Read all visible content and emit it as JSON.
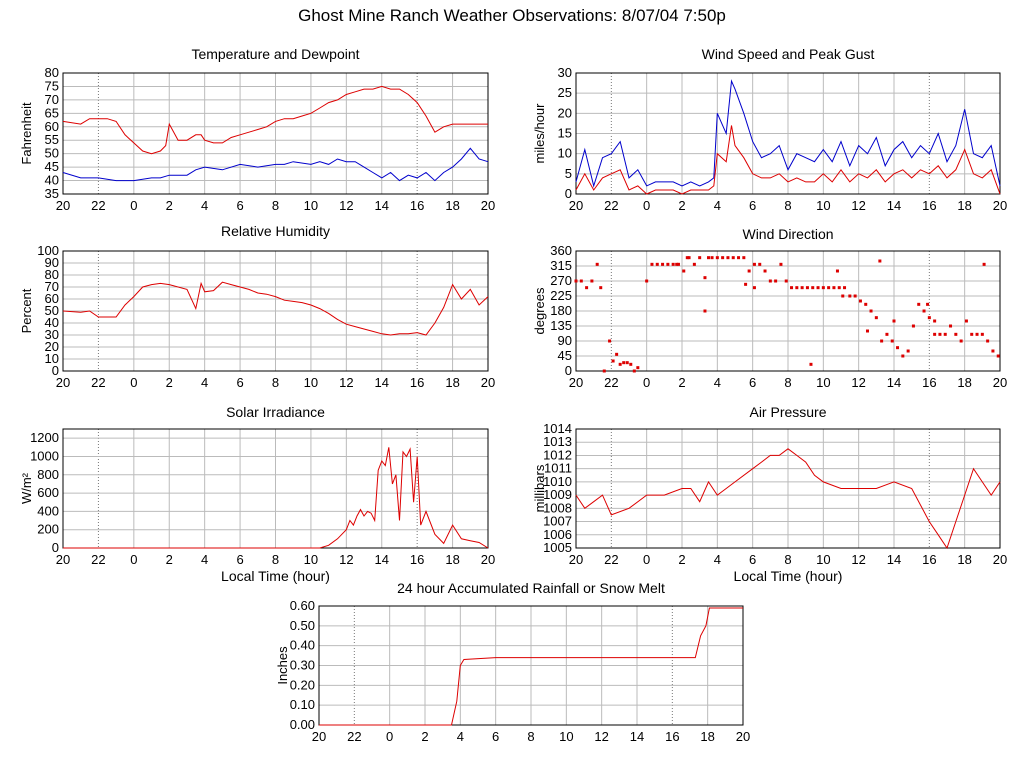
{
  "page": {
    "title": "Ghost Mine Ranch Weather Observations: 8/07/04 7:50p"
  },
  "chart_data": [
    {
      "id": "temp",
      "type": "line",
      "title": "Temperature and Dewpoint",
      "xlabel": "",
      "ylabel": "Fahrenheit",
      "xlim": [
        0,
        24
      ],
      "ylim": [
        35,
        80
      ],
      "x_ticks": [
        "20",
        "22",
        "0",
        "2",
        "4",
        "6",
        "8",
        "10",
        "12",
        "14",
        "16",
        "18",
        "20"
      ],
      "y_ticks": [
        35,
        40,
        45,
        50,
        55,
        60,
        65,
        70,
        75,
        80
      ],
      "grid": true,
      "series": [
        {
          "color": "#dd0000",
          "x": [
            0,
            1,
            1.5,
            2,
            2.5,
            3,
            3.5,
            4,
            4.5,
            5,
            5.5,
            5.8,
            6,
            6.5,
            7,
            7.5,
            7.8,
            8,
            8.5,
            9,
            9.5,
            10,
            10.5,
            11,
            11.5,
            12,
            12.5,
            13,
            13.5,
            14,
            14.5,
            15,
            15.5,
            16,
            16.5,
            17,
            17.5,
            18,
            18.5,
            19,
            19.5,
            20,
            20.5,
            21,
            21.5,
            22,
            22.5,
            23,
            23.5,
            24
          ],
          "values": [
            62,
            61,
            63,
            63,
            63,
            62,
            57,
            54,
            51,
            50,
            51,
            53,
            61,
            55,
            55,
            57,
            57,
            55,
            54,
            54,
            56,
            57,
            58,
            59,
            60,
            62,
            63,
            63,
            64,
            65,
            67,
            69,
            70,
            72,
            73,
            74,
            74,
            75,
            74,
            74,
            72,
            69,
            64,
            58,
            60,
            61,
            61,
            61,
            61,
            61
          ]
        },
        {
          "color": "#0000cc",
          "x": [
            0,
            1,
            2,
            3,
            4,
            5,
            5.5,
            6,
            6.5,
            7,
            7.5,
            8,
            9,
            10,
            11,
            12,
            12.5,
            13,
            14,
            14.5,
            15,
            15.5,
            16,
            16.5,
            17,
            17.5,
            18,
            18.5,
            19,
            19.5,
            20,
            20.5,
            21,
            21.5,
            22,
            22.5,
            23,
            23.5,
            24
          ],
          "values": [
            43,
            41,
            41,
            40,
            40,
            41,
            41,
            42,
            42,
            42,
            44,
            45,
            44,
            46,
            45,
            46,
            46,
            47,
            46,
            47,
            46,
            48,
            47,
            47,
            45,
            43,
            41,
            43,
            40,
            42,
            41,
            43,
            40,
            43,
            45,
            48,
            52,
            48,
            47
          ]
        }
      ]
    },
    {
      "id": "wind",
      "type": "line",
      "title": "Wind Speed and Peak Gust",
      "xlabel": "",
      "ylabel": "miles/hour",
      "xlim": [
        0,
        24
      ],
      "ylim": [
        0,
        30
      ],
      "x_ticks": [
        "20",
        "22",
        "0",
        "2",
        "4",
        "6",
        "8",
        "10",
        "12",
        "14",
        "16",
        "18",
        "20"
      ],
      "y_ticks": [
        0,
        5,
        10,
        15,
        20,
        25,
        30
      ],
      "grid": true,
      "series": [
        {
          "color": "#0000cc",
          "x": [
            0,
            0.5,
            1,
            1.5,
            2,
            2.5,
            3,
            3.5,
            4,
            4.5,
            5,
            5.5,
            6,
            6.5,
            7,
            7.5,
            7.8,
            8,
            8.5,
            8.8,
            9,
            9.5,
            10,
            10.5,
            11,
            11.5,
            12,
            12.5,
            13,
            13.5,
            14,
            14.5,
            15,
            15.5,
            16,
            16.5,
            17,
            17.5,
            18,
            18.5,
            19,
            19.5,
            20,
            20.5,
            21,
            21.5,
            22,
            22.5,
            23,
            23.5,
            24
          ],
          "values": [
            3,
            11,
            2,
            9,
            10,
            13,
            4,
            6,
            2,
            3,
            3,
            3,
            2,
            3,
            2,
            3,
            4,
            20,
            15,
            28,
            26,
            20,
            13,
            9,
            10,
            12,
            6,
            10,
            9,
            8,
            11,
            8,
            13,
            7,
            12,
            10,
            14,
            7,
            11,
            13,
            9,
            12,
            10,
            15,
            8,
            12,
            21,
            10,
            9,
            12,
            2
          ]
        },
        {
          "color": "#dd0000",
          "x": [
            0,
            0.5,
            1,
            1.5,
            2,
            2.5,
            3,
            3.5,
            4,
            4.5,
            5,
            5.5,
            6,
            6.5,
            7,
            7.5,
            7.8,
            8,
            8.5,
            8.8,
            9,
            9.5,
            10,
            10.5,
            11,
            11.5,
            12,
            12.5,
            13,
            13.5,
            14,
            14.5,
            15,
            15.5,
            16,
            16.5,
            17,
            17.5,
            18,
            18.5,
            19,
            19.5,
            20,
            20.5,
            21,
            21.5,
            22,
            22.5,
            23,
            23.5,
            24
          ],
          "values": [
            1,
            5,
            1,
            4,
            5,
            6,
            1,
            2,
            0,
            1,
            1,
            1,
            0,
            1,
            1,
            1,
            2,
            10,
            8,
            17,
            12,
            9,
            5,
            4,
            4,
            5,
            3,
            4,
            3,
            3,
            5,
            3,
            6,
            3,
            5,
            4,
            6,
            3,
            5,
            6,
            4,
            6,
            5,
            7,
            4,
            6,
            11,
            5,
            4,
            6,
            0
          ]
        }
      ]
    },
    {
      "id": "rh",
      "type": "line",
      "title": "Relative Humidity",
      "xlabel": "",
      "ylabel": "Percent",
      "xlim": [
        0,
        24
      ],
      "ylim": [
        0,
        100
      ],
      "x_ticks": [
        "20",
        "22",
        "0",
        "2",
        "4",
        "6",
        "8",
        "10",
        "12",
        "14",
        "16",
        "18",
        "20"
      ],
      "y_ticks": [
        0,
        10,
        20,
        30,
        40,
        50,
        60,
        70,
        80,
        90,
        100
      ],
      "grid": true,
      "series": [
        {
          "color": "#dd0000",
          "x": [
            0,
            1,
            1.5,
            2,
            3,
            3.5,
            4,
            4.5,
            5,
            5.5,
            6,
            7,
            7.5,
            7.8,
            8,
            8.5,
            9,
            9.5,
            10,
            10.5,
            11,
            11.5,
            12,
            12.5,
            13,
            13.5,
            14,
            14.5,
            15,
            15.5,
            16,
            16.5,
            17,
            17.5,
            18,
            18.5,
            19,
            19.5,
            20,
            20.5,
            21,
            21.5,
            22,
            22.5,
            23,
            23.5,
            24
          ],
          "values": [
            50,
            49,
            50,
            45,
            45,
            55,
            62,
            70,
            72,
            73,
            72,
            68,
            52,
            73,
            66,
            67,
            74,
            72,
            70,
            68,
            65,
            64,
            62,
            59,
            58,
            57,
            55,
            52,
            48,
            43,
            39,
            37,
            35,
            33,
            31,
            30,
            31,
            31,
            32,
            30,
            40,
            53,
            72,
            60,
            68,
            55,
            62
          ]
        }
      ]
    },
    {
      "id": "winddir",
      "type": "scatter",
      "title": "Wind Direction",
      "xlabel": "",
      "ylabel": "degrees",
      "xlim": [
        0,
        24
      ],
      "ylim": [
        0,
        360
      ],
      "x_ticks": [
        "20",
        "22",
        "0",
        "2",
        "4",
        "6",
        "8",
        "10",
        "12",
        "14",
        "16",
        "18",
        "20"
      ],
      "y_ticks": [
        0,
        45,
        90,
        135,
        180,
        225,
        270,
        315,
        360
      ],
      "grid": true,
      "series": [
        {
          "color": "#dd0000",
          "x": [
            0,
            0.3,
            0.6,
            0.9,
            1.2,
            1.4,
            1.6,
            1.9,
            2.1,
            2.3,
            2.5,
            2.7,
            2.9,
            3.1,
            3.3,
            3.5,
            4,
            4.3,
            4.6,
            4.9,
            5.2,
            5.5,
            5.8,
            6.1,
            6.4,
            6.7,
            7,
            7.3,
            7.5,
            7.7,
            8,
            8.3,
            8.6,
            8.9,
            9.2,
            9.5,
            9.8,
            10.1,
            10.4,
            10.7,
            11,
            11.3,
            11.6,
            11.9,
            12.2,
            12.5,
            12.8,
            13.1,
            13.4,
            13.7,
            14,
            14.3,
            14.6,
            14.9,
            15.2,
            15.5,
            15.8,
            16.1,
            16.4,
            16.7,
            17,
            17.3,
            17.6,
            17.9,
            18.2,
            18.5,
            18.8,
            19.1,
            19.4,
            19.7,
            20,
            20.3,
            20.6,
            20.9,
            21.2,
            21.5,
            21.8,
            22.1,
            22.4,
            22.7,
            23,
            23.3,
            23.6,
            23.9,
            5.7,
            6.3,
            7.3,
            9.6,
            10.1,
            13.3,
            14.8,
            15.1,
            16.5,
            17.2,
            18.0,
            19.9,
            20.3,
            23.1
          ],
          "values": [
            270,
            270,
            250,
            270,
            320,
            250,
            0,
            90,
            30,
            50,
            20,
            25,
            25,
            20,
            0,
            10,
            270,
            320,
            320,
            320,
            320,
            320,
            320,
            300,
            340,
            320,
            340,
            280,
            340,
            340,
            340,
            340,
            340,
            340,
            340,
            340,
            300,
            320,
            320,
            300,
            270,
            270,
            320,
            270,
            250,
            250,
            250,
            250,
            250,
            250,
            250,
            250,
            250,
            250,
            250,
            225,
            225,
            210,
            200,
            180,
            160,
            90,
            110,
            90,
            70,
            45,
            60,
            135,
            200,
            180,
            160,
            110,
            110,
            110,
            135,
            110,
            90,
            150,
            110,
            110,
            110,
            90,
            60,
            45,
            320,
            340,
            180,
            260,
            250,
            20,
            300,
            225,
            120,
            330,
            150,
            200,
            150,
            320
          ]
        }
      ]
    },
    {
      "id": "solar",
      "type": "line",
      "title": "Solar Irradiance",
      "xlabel": "Local Time (hour)",
      "ylabel": "W/m²",
      "xlim": [
        0,
        24
      ],
      "ylim": [
        0,
        1300
      ],
      "x_ticks": [
        "20",
        "22",
        "0",
        "2",
        "4",
        "6",
        "8",
        "10",
        "12",
        "14",
        "16",
        "18",
        "20"
      ],
      "y_ticks": [
        0,
        200,
        400,
        600,
        800,
        1000,
        1200
      ],
      "grid": true,
      "series": [
        {
          "color": "#dd0000",
          "x": [
            0,
            2,
            4,
            6,
            8,
            10,
            11,
            11.5,
            12,
            12.5,
            13,
            13.5,
            14,
            14.5,
            15,
            15.5,
            16,
            16.2,
            16.4,
            16.6,
            16.8,
            17,
            17.2,
            17.4,
            17.6,
            17.8,
            18,
            18.2,
            18.4,
            18.6,
            18.8,
            19,
            19.2,
            19.4,
            19.6,
            19.8,
            20,
            20.2,
            20.5,
            21,
            21.5,
            22,
            22.5,
            23,
            23.5,
            24
          ],
          "values": [
            0,
            0,
            0,
            0,
            0,
            0,
            0,
            0,
            0,
            0,
            0,
            0,
            0,
            0,
            30,
            100,
            200,
            300,
            250,
            350,
            420,
            350,
            400,
            380,
            300,
            850,
            950,
            900,
            1100,
            700,
            800,
            300,
            1050,
            1000,
            1080,
            500,
            1000,
            250,
            400,
            150,
            50,
            250,
            100,
            80,
            60,
            0
          ]
        }
      ]
    },
    {
      "id": "pressure",
      "type": "line",
      "title": "Air Pressure",
      "xlabel": "Local Time (hour)",
      "ylabel": "millibars",
      "xlim": [
        0,
        24
      ],
      "ylim": [
        1005,
        1014
      ],
      "x_ticks": [
        "20",
        "22",
        "0",
        "2",
        "4",
        "6",
        "8",
        "10",
        "12",
        "14",
        "16",
        "18",
        "20"
      ],
      "y_ticks": [
        1005,
        1006,
        1007,
        1008,
        1009,
        1010,
        1011,
        1012,
        1013,
        1014
      ],
      "grid": true,
      "series": [
        {
          "color": "#dd0000",
          "x": [
            0,
            0.5,
            1,
            1.5,
            2,
            3,
            4,
            5,
            6,
            6.5,
            7,
            7.5,
            8,
            8.5,
            9,
            10,
            10.5,
            11,
            11.5,
            12,
            12.5,
            13,
            13.5,
            14,
            15,
            16,
            17,
            18,
            19,
            20,
            20.5,
            21,
            21.5,
            22,
            22.5,
            23,
            23.5,
            24
          ],
          "values": [
            1009,
            1008,
            1008.5,
            1009,
            1007.5,
            1008,
            1009,
            1009,
            1009.5,
            1009.5,
            1008.5,
            1010,
            1009,
            1009.5,
            1010,
            1011,
            1011.5,
            1012,
            1012,
            1012.5,
            1012,
            1011.5,
            1010.5,
            1010,
            1009.5,
            1009.5,
            1009.5,
            1010,
            1009.5,
            1007,
            1006,
            1005,
            1007,
            1009,
            1011,
            1010,
            1009,
            1010
          ]
        }
      ]
    },
    {
      "id": "rain",
      "type": "line",
      "title": "24 hour Accumulated Rainfall or Snow Melt",
      "xlabel": "",
      "ylabel": "Inches",
      "xlim": [
        0,
        24
      ],
      "ylim": [
        0,
        0.6
      ],
      "x_ticks": [
        "20",
        "22",
        "0",
        "2",
        "4",
        "6",
        "8",
        "10",
        "12",
        "14",
        "16",
        "18",
        "20"
      ],
      "y_ticks": [
        "0.00",
        "0.10",
        "0.20",
        "0.30",
        "0.40",
        "0.50",
        "0.60"
      ],
      "grid": true,
      "series": [
        {
          "color": "#dd0000",
          "x": [
            0,
            7.5,
            7.8,
            8,
            8.2,
            10,
            21.3,
            21.6,
            21.9,
            22.1,
            24
          ],
          "values": [
            0,
            0,
            0.12,
            0.3,
            0.33,
            0.34,
            0.34,
            0.45,
            0.5,
            0.59,
            0.59
          ]
        }
      ]
    }
  ]
}
